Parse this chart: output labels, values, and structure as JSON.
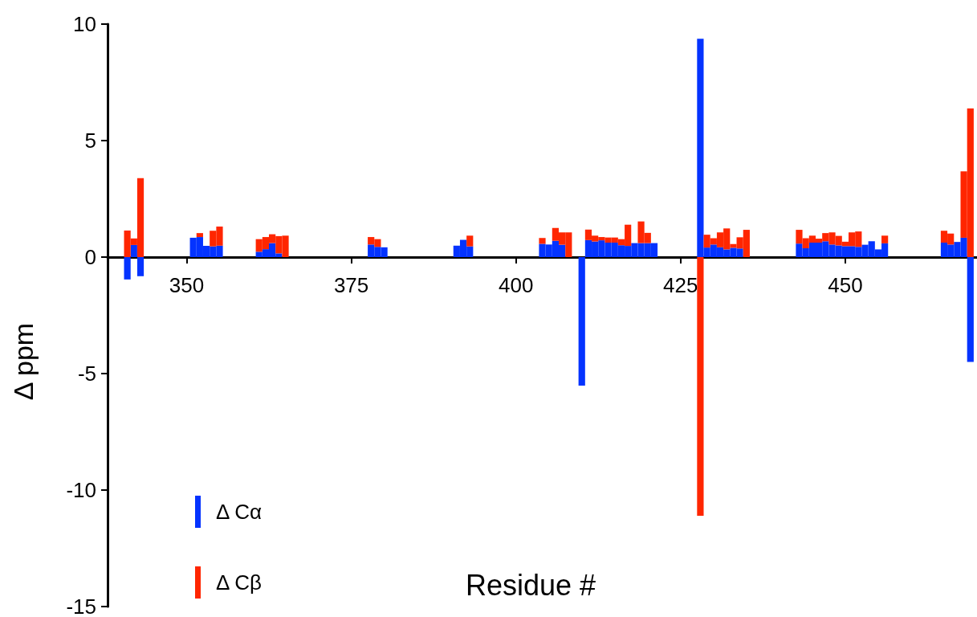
{
  "chart_data": {
    "type": "bar",
    "xlabel": "Residue #",
    "ylabel": "Δ ppm",
    "stacked": true,
    "x": [
      341,
      342,
      343,
      351,
      352,
      353,
      354,
      355,
      361,
      362,
      363,
      364,
      365,
      378,
      379,
      380,
      391,
      392,
      393,
      404,
      405,
      406,
      407,
      408,
      410,
      411,
      412,
      413,
      414,
      415,
      416,
      417,
      418,
      419,
      420,
      421,
      428,
      429,
      430,
      431,
      432,
      433,
      434,
      435,
      443,
      444,
      445,
      446,
      447,
      448,
      449,
      450,
      451,
      452,
      453,
      454,
      455,
      456,
      465,
      466,
      467,
      468,
      469
    ],
    "series": [
      {
        "name": "Δ Cα",
        "color": "#0433ff",
        "values": [
          -0.96,
          0.52,
          -0.82,
          0.83,
          0.86,
          0.48,
          0.46,
          0.49,
          0.23,
          0.34,
          0.6,
          0.16,
          null,
          0.54,
          0.44,
          0.42,
          0.49,
          0.74,
          0.46,
          0.57,
          0.54,
          0.7,
          0.53,
          null,
          -5.52,
          0.73,
          0.67,
          0.72,
          0.62,
          0.62,
          0.51,
          0.48,
          0.6,
          0.6,
          0.6,
          0.6,
          9.37,
          0.41,
          0.54,
          0.42,
          0.33,
          0.4,
          0.37,
          null,
          0.58,
          0.38,
          0.62,
          0.62,
          0.68,
          0.54,
          0.5,
          0.47,
          0.47,
          0.44,
          0.53,
          0.68,
          0.33,
          0.59,
          0.62,
          0.54,
          0.65,
          0.83,
          -4.5
        ]
      },
      {
        "name": "Δ Cβ",
        "color": "#ff2600",
        "values": [
          1.14,
          0.28,
          3.39,
          null,
          0.17,
          null,
          0.67,
          0.82,
          0.54,
          0.52,
          0.38,
          0.74,
          0.92,
          0.32,
          0.33,
          null,
          null,
          null,
          0.46,
          0.25,
          null,
          0.55,
          0.53,
          1.06,
          null,
          0.45,
          0.25,
          0.14,
          0.22,
          0.22,
          0.26,
          0.91,
          null,
          0.93,
          0.44,
          null,
          -11.1,
          0.55,
          0.27,
          0.64,
          0.9,
          0.16,
          0.48,
          1.17,
          0.59,
          0.43,
          0.3,
          0.17,
          0.35,
          0.52,
          0.41,
          0.19,
          0.59,
          0.66,
          null,
          null,
          null,
          0.33,
          0.51,
          0.47,
          null,
          2.85,
          6.38
        ]
      }
    ],
    "xlim": [
      338,
      470
    ],
    "xticks": [
      350,
      375,
      400,
      425,
      450
    ],
    "ylim": [
      -15,
      10
    ],
    "yticks": [
      -15,
      -10,
      -5,
      0,
      5,
      10
    ],
    "grid": false,
    "legend": "bottom left"
  }
}
